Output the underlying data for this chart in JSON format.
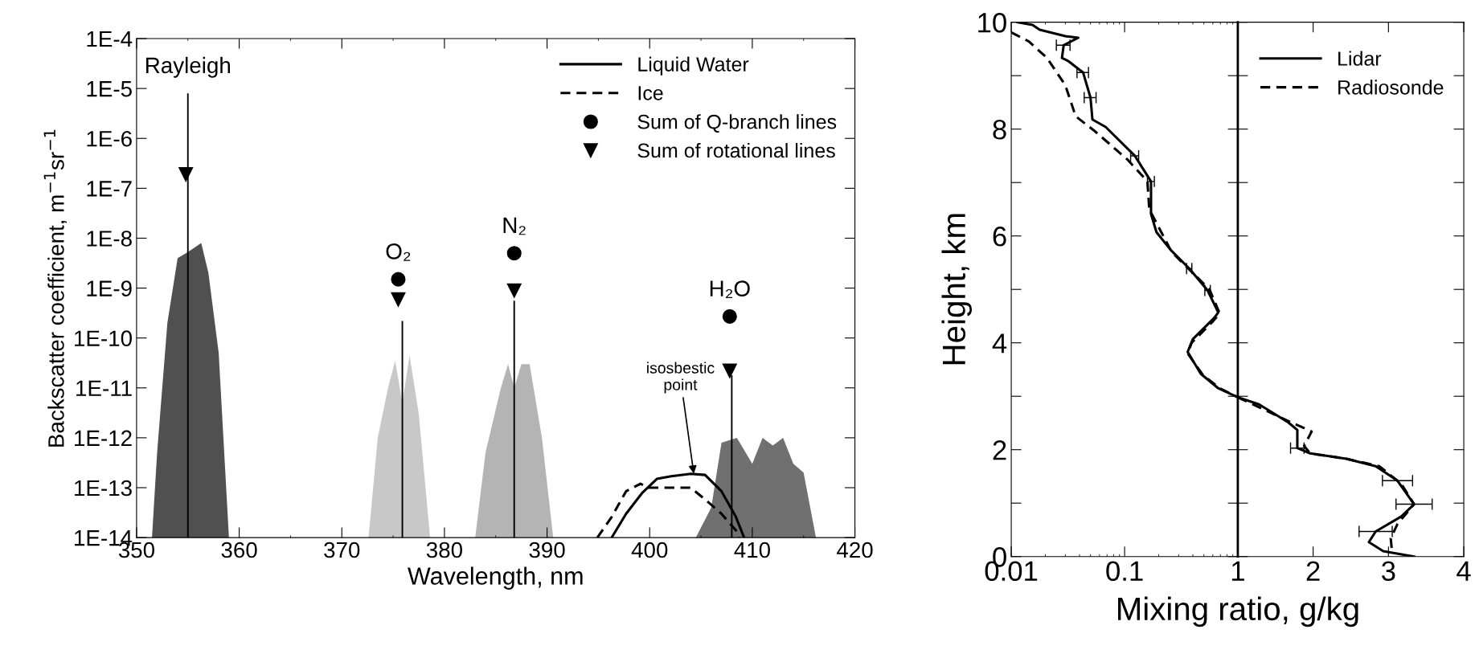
{
  "chart_data": [
    {
      "type": "line",
      "xlabel": "Wavelength, nm",
      "ylabel": "Backscatter coefficient, m$^{−1}$sr$^{−1}$",
      "log": "y",
      "xlim": [
        350,
        420
      ],
      "xticks": [
        350,
        360,
        370,
        380,
        390,
        400,
        410,
        420
      ],
      "ylim": [
        1e-14,
        0.0001
      ],
      "yticks": [
        {
          "value": 1e-14,
          "label": "1E-14"
        },
        {
          "value": 1e-13,
          "label": "1E-13"
        },
        {
          "value": 1e-12,
          "label": "1E-12"
        },
        {
          "value": 1e-11,
          "label": "1E-11"
        },
        {
          "value": 1e-10,
          "label": "1E-10"
        },
        {
          "value": 1e-09,
          "label": "1E-9"
        },
        {
          "value": 1e-08,
          "label": "1E-8"
        },
        {
          "value": 1e-07,
          "label": "1E-7"
        },
        {
          "value": 1e-06,
          "label": "1E-6"
        },
        {
          "value": 1e-05,
          "label": "1E-5"
        },
        {
          "value": 0.0001,
          "label": "1E-4"
        }
      ],
      "legend": "top right",
      "series": [
        {
          "type": "area",
          "color": "#505050",
          "x": [
            351.5,
            352,
            353,
            354,
            354.8,
            355.4,
            356.3,
            357,
            358,
            359
          ],
          "values": [
            1e-14,
            5e-13,
            2e-10,
            4e-09,
            5e-09,
            6e-09,
            8e-09,
            2e-09,
            5e-11,
            1e-14
          ]
        },
        {
          "type": "area",
          "color": "#c8c8c8",
          "x": [
            372.6,
            373.5,
            374.5,
            375.2,
            375.9,
            376.6,
            377.5,
            378.6
          ],
          "values": [
            1e-14,
            1e-12,
            1e-11,
            3.5e-11,
            5e-12,
            4.5e-11,
            3e-12,
            1e-14
          ]
        },
        {
          "type": "area",
          "color": "#b4b4b4",
          "x": [
            383,
            384,
            385.5,
            386.2,
            386.8,
            387.5,
            388.3,
            389.5,
            390.6
          ],
          "values": [
            1e-14,
            5e-13,
            1e-11,
            3e-11,
            1e-11,
            3e-11,
            3e-11,
            1e-12,
            1e-14
          ]
        },
        {
          "type": "area",
          "color": "#707070",
          "x": [
            404.5,
            406,
            407,
            408.5,
            410,
            411,
            412,
            413,
            414,
            415,
            416.2
          ],
          "values": [
            1e-14,
            4e-14,
            8e-13,
            1e-12,
            3e-13,
            1e-12,
            7e-13,
            1e-12,
            3e-13,
            2e-13,
            1e-14
          ]
        },
        {
          "type": "bar",
          "color": "#000000",
          "x": [
            355,
            375.9,
            386.8,
            408
          ],
          "values": [
            8e-06,
            2.2e-10,
            5.6e-10,
            1.8e-11
          ]
        },
        {
          "type": "line",
          "name": "Liquid Water",
          "color": "#000000",
          "line_style": "solid",
          "x": [
            396.3,
            397.7,
            399.3,
            400.7,
            402.1,
            404.0,
            405.4,
            407.0,
            408.4,
            409.2
          ],
          "values": [
            1e-14,
            3e-14,
            8e-14,
            1.5e-13,
            1.7e-13,
            1.9e-13,
            1.8e-13,
            8.5e-14,
            2.6e-14,
            1e-14
          ]
        },
        {
          "type": "line",
          "name": "Ice",
          "color": "#000000",
          "line_style": "dashed",
          "x": [
            394.9,
            396.3,
            397.7,
            399.1,
            399.9,
            401.5,
            404.0,
            405.4,
            407.0,
            408.4,
            408.7
          ],
          "values": [
            1e-14,
            2.6e-14,
            8.5e-14,
            1.2e-13,
            1e-13,
            1e-13,
            1e-13,
            5.8e-14,
            3e-14,
            1.4e-14,
            1e-14
          ]
        },
        {
          "type": "scatter",
          "name": "Sum of Q-branch lines",
          "color": "#000000",
          "marker": "circle",
          "x": [
            375.5,
            386.8,
            407.8
          ],
          "values": [
            1.5e-09,
            5e-09,
            2.7e-10
          ]
        },
        {
          "type": "scatter",
          "name": "Sum of rotational lines",
          "color": "#000000",
          "marker": "triangle",
          "x": [
            354.8,
            375.5,
            386.8,
            407.8
          ],
          "values": [
            1.9e-07,
            5.9e-10,
            8.9e-10,
            2.2e-11
          ]
        }
      ],
      "annotations": [
        {
          "text": "Rayleigh",
          "x": 355,
          "y": 8e-06
        },
        {
          "text": "O₂",
          "x": 375.5,
          "y": 1.5e-09
        },
        {
          "text": "N₂",
          "x": 386.8,
          "y": 5e-09
        },
        {
          "text": "H₂O",
          "x": 407.8,
          "y": 2.7e-10
        },
        {
          "text": "isosbestic\npoint",
          "x": 404.3,
          "y": 1.9e-13
        }
      ]
    },
    {
      "type": "line",
      "ylabel": "Height, km",
      "log": "x",
      "xlim": [
        0.01,
        1
      ],
      "xticks": [
        0.01,
        0.1,
        {
          "value": 1,
          "label": null
        }
      ],
      "ylim": [
        0,
        10
      ],
      "yticks": [
        0,
        {
          "value": 1,
          "label": null
        },
        2,
        {
          "value": 3,
          "label": null
        },
        4,
        {
          "value": 5,
          "label": null
        },
        6,
        {
          "value": 7,
          "label": null
        },
        8,
        {
          "value": 9,
          "label": null
        },
        10
      ],
      "series": [
        {
          "color": "#000000",
          "line_style": "solid",
          "x": [
            0.0114,
            0.0154,
            0.0178,
            0.03,
            0.039,
            0.029,
            0.028,
            0.032,
            0.043,
            0.05,
            0.052,
            0.068,
            0.123,
            0.171,
            0.171,
            0.191,
            0.257,
            0.372,
            0.54,
            0.67,
            0.62,
            0.4,
            0.36,
            0.47,
            0.67,
            1.0
          ],
          "values": [
            10.0,
            9.95,
            9.86,
            9.74,
            9.71,
            9.57,
            9.33,
            9.27,
            9.06,
            8.59,
            8.18,
            8.04,
            7.5,
            7.02,
            6.41,
            6.07,
            5.73,
            5.39,
            4.98,
            4.57,
            4.47,
            4.07,
            3.83,
            3.42,
            3.15,
            2.98
          ],
          "xerrors": [
            null,
            null,
            null,
            null,
            null,
            0.004,
            null,
            null,
            0.005,
            0.006,
            null,
            null,
            0.01,
            0.012,
            null,
            null,
            null,
            0.02,
            0.03,
            null,
            null,
            null,
            null,
            null,
            null,
            null
          ]
        },
        {
          "color": "#000000",
          "line_style": "dashed",
          "x": [
            0.01,
            0.0143,
            0.0207,
            0.03,
            0.037,
            0.054,
            0.106,
            0.159,
            0.165,
            0.26,
            0.56,
            0.69,
            0.6,
            0.39,
            0.36,
            0.49,
            0.69,
            1.0
          ],
          "values": [
            9.81,
            9.64,
            9.33,
            8.82,
            8.24,
            7.97,
            7.43,
            7.02,
            6.5,
            5.7,
            5.0,
            4.55,
            4.4,
            4.0,
            3.8,
            3.4,
            3.15,
            2.98
          ]
        }
      ]
    },
    {
      "type": "line",
      "xlabel": "Mixing ratio, g/kg",
      "tick_labels": "x",
      "legend": "top left",
      "xlim": [
        1,
        4
      ],
      "xticks": [
        1,
        2,
        3,
        4
      ],
      "ylim": [
        0,
        10
      ],
      "yticks": [
        0,
        1,
        2,
        3,
        4,
        5,
        6,
        7,
        8,
        9,
        10
      ],
      "series": [
        {
          "name": "Lidar",
          "color": "#000000",
          "line_style": "solid",
          "x": [
            1.0,
            1.28,
            1.67,
            1.79,
            1.79,
            1.96,
            2.44,
            2.83,
            3.12,
            3.34,
            3.17,
            2.83,
            2.74,
            2.93,
            3.34
          ],
          "values": [
            2.98,
            2.85,
            2.51,
            2.37,
            2.03,
            1.93,
            1.83,
            1.69,
            1.42,
            0.98,
            0.75,
            0.47,
            0.27,
            0.1,
            0.0
          ],
          "xerrors": [
            null,
            null,
            null,
            null,
            0.09,
            null,
            null,
            null,
            0.2,
            0.24,
            null,
            0.22,
            null,
            null,
            null
          ]
        },
        {
          "name": "Radiosonde",
          "color": "#000000",
          "line_style": "dashed",
          "x": [
            1.0,
            1.71,
            1.98,
            1.88,
            1.96,
            2.44,
            2.88,
            3.17,
            3.34,
            3.12,
            3.03,
            3.05
          ],
          "values": [
            2.98,
            2.51,
            2.34,
            2.07,
            1.93,
            1.83,
            1.69,
            1.36,
            0.98,
            0.61,
            0.34,
            0.05
          ]
        }
      ]
    }
  ]
}
